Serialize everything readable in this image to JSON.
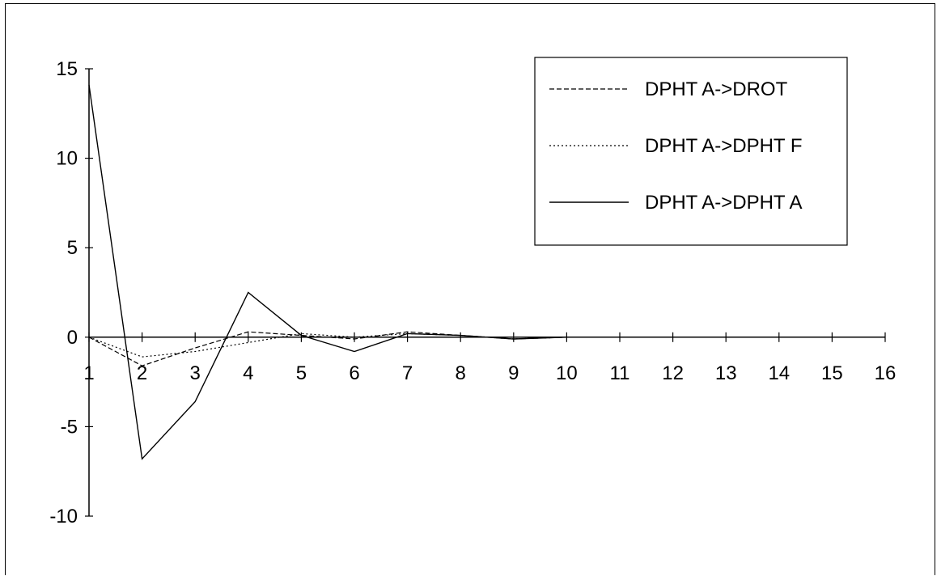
{
  "chart_data": {
    "type": "line",
    "title": "",
    "xlabel": "",
    "ylabel": "",
    "x": [
      1,
      2,
      3,
      4,
      5,
      6,
      7,
      8,
      9,
      10,
      11,
      12,
      13,
      14,
      15,
      16
    ],
    "x_tick_labels": [
      "1",
      "2",
      "3",
      "4",
      "5",
      "6",
      "7",
      "8",
      "9",
      "10",
      "11",
      "12",
      "13",
      "14",
      "15",
      "16"
    ],
    "y_ticks": [
      15,
      10,
      5,
      0,
      -5,
      -10
    ],
    "y_tick_labels": [
      "15",
      "10",
      "5",
      "0",
      "-5",
      "-10"
    ],
    "ylim": [
      -10,
      15
    ],
    "xlim": [
      1,
      16
    ],
    "grid": false,
    "legend_position": "top-right",
    "series": [
      {
        "name": "DPHT A->DROT",
        "style": "dashed",
        "color": "#000000",
        "values": [
          0,
          -1.6,
          -0.6,
          0.3,
          0.1,
          -0.1,
          0.3,
          0.1,
          -0.1,
          0,
          0,
          0,
          0,
          0,
          0,
          0
        ]
      },
      {
        "name": "DPHT A->DPHT F",
        "style": "dotted",
        "color": "#000000",
        "values": [
          0,
          -1.1,
          -0.8,
          -0.3,
          0.2,
          0,
          0.2,
          0.1,
          -0.1,
          0,
          0,
          0,
          0,
          0,
          0,
          0
        ]
      },
      {
        "name": "DPHT A->DPHT A",
        "style": "solid",
        "color": "#000000",
        "values": [
          14.1,
          -6.8,
          -3.6,
          2.5,
          0.1,
          -0.8,
          0.2,
          0.1,
          -0.1,
          0,
          0,
          0,
          0,
          0,
          0,
          0
        ]
      }
    ]
  }
}
